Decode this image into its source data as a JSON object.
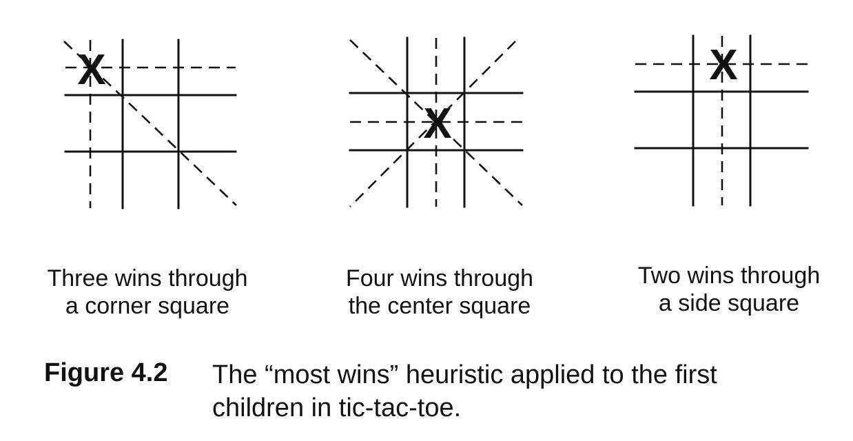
{
  "panels": [
    {
      "id": "corner",
      "mark": "X",
      "caption_line1": "Three wins through",
      "caption_line2": "a corner square"
    },
    {
      "id": "center",
      "mark": "X",
      "caption_line1": "Four wins through",
      "caption_line2": "the center square"
    },
    {
      "id": "side",
      "mark": "X",
      "caption_line1": "Two wins through",
      "caption_line2": "a side square"
    }
  ],
  "figure": {
    "label": "Figure 4.2",
    "caption_line1": "The “most wins” heuristic applied to the first",
    "caption_line2": "children in tic-tac-toe."
  }
}
